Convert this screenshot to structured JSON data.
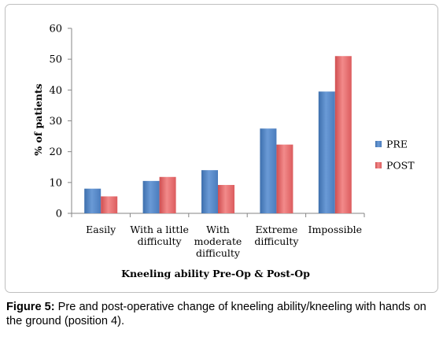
{
  "chart_data": {
    "type": "bar",
    "categories": [
      [
        "Easily"
      ],
      [
        "With a little",
        "difficulty"
      ],
      [
        "With",
        "moderate",
        "difficulty"
      ],
      [
        "Extreme",
        "difficulty"
      ],
      [
        "Impossible"
      ]
    ],
    "series": [
      {
        "name": "PRE",
        "values": [
          8,
          10.5,
          14,
          27.5,
          39.5
        ],
        "color": "#4f81bd"
      },
      {
        "name": "POST",
        "values": [
          5.5,
          11.8,
          9.2,
          22.3,
          51
        ],
        "color": "#e26466"
      }
    ],
    "ylabel": "% of patients",
    "xlabel": "Kneeling ability Pre-Op & Post-Op",
    "ylim": [
      0,
      60
    ],
    "yticks": [
      0,
      10,
      20,
      30,
      40,
      50,
      60
    ],
    "grid": false,
    "legend_position": "right"
  },
  "caption": {
    "label": "Figure 5:",
    "text": " Pre and post-operative change of kneeling ability/kneeling with hands on the ground (position 4)."
  }
}
